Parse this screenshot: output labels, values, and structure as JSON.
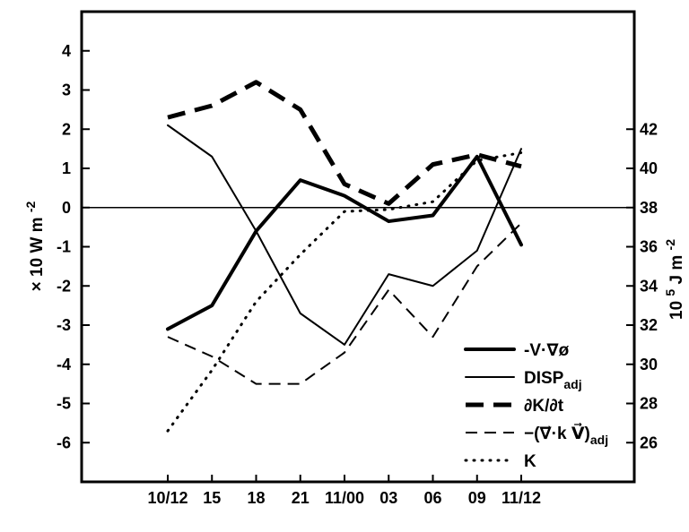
{
  "chart_data": {
    "type": "line",
    "x_tick_labels": [
      "10/12",
      "15",
      "18",
      "21",
      "11/00",
      "03",
      "06",
      "09",
      "11/12"
    ],
    "left_axis": {
      "label_main": "× 10 W m",
      "label_sup": "-2",
      "ylim": [
        -7,
        5
      ],
      "ticks": [
        4,
        3,
        2,
        1,
        0,
        -1,
        -2,
        -3,
        -4,
        -5,
        -6
      ],
      "tick_labels": [
        "4",
        "3",
        "2",
        "1",
        "0",
        "-1",
        "-2",
        "-3",
        "-4",
        "-5",
        "-6"
      ]
    },
    "right_axis": {
      "label_main": "10",
      "label_sup1": "5",
      "label_mid": " J m",
      "label_sup2": "-2",
      "ylim": [
        24,
        48
      ],
      "ticks": [
        42,
        40,
        38,
        36,
        34,
        32,
        30,
        28,
        26
      ],
      "tick_labels": [
        "42",
        "40",
        "38",
        "36",
        "34",
        "32",
        "30",
        "28",
        "26"
      ]
    },
    "zero_line": 0,
    "series": [
      {
        "name": "-V·∇ø",
        "label_main": "-V·∇ø",
        "label_sub": "",
        "style": "thick-solid",
        "color": "#000000",
        "axis": "left",
        "values": [
          -3.1,
          -2.5,
          -0.6,
          0.7,
          0.3,
          -0.35,
          -0.2,
          1.3,
          -0.95
        ]
      },
      {
        "name": "DISPadj",
        "label_main": "DISP",
        "label_sub": "adj",
        "style": "thin-solid",
        "color": "#000000",
        "axis": "left",
        "values": [
          2.1,
          1.3,
          -0.6,
          -2.7,
          -3.5,
          -1.7,
          -2.0,
          -1.1,
          1.5
        ]
      },
      {
        "name": "∂K/∂t",
        "label_main": "∂K/∂t",
        "label_sub": "",
        "style": "thick-dash",
        "color": "#000000",
        "axis": "left",
        "values": [
          2.3,
          2.6,
          3.2,
          2.5,
          0.6,
          0.1,
          1.1,
          1.35,
          1.05
        ]
      },
      {
        "name": "-(∇·kV)adj",
        "label_main": "−(∇⃗·k V⃗)",
        "label_sub": "adj",
        "style": "thin-dash",
        "color": "#000000",
        "axis": "left",
        "values": [
          -3.3,
          -3.8,
          -4.5,
          -4.5,
          -3.7,
          -2.1,
          -3.3,
          -1.5,
          -0.4
        ]
      },
      {
        "name": "K",
        "label_main": "K",
        "label_sub": "",
        "style": "dotted",
        "color": "#000000",
        "axis": "right",
        "values": [
          26.6,
          29.7,
          33.2,
          35.6,
          37.8,
          37.9,
          38.3,
          40.4,
          40.8
        ]
      }
    ],
    "grid": false,
    "legend_position": "bottom-right"
  }
}
